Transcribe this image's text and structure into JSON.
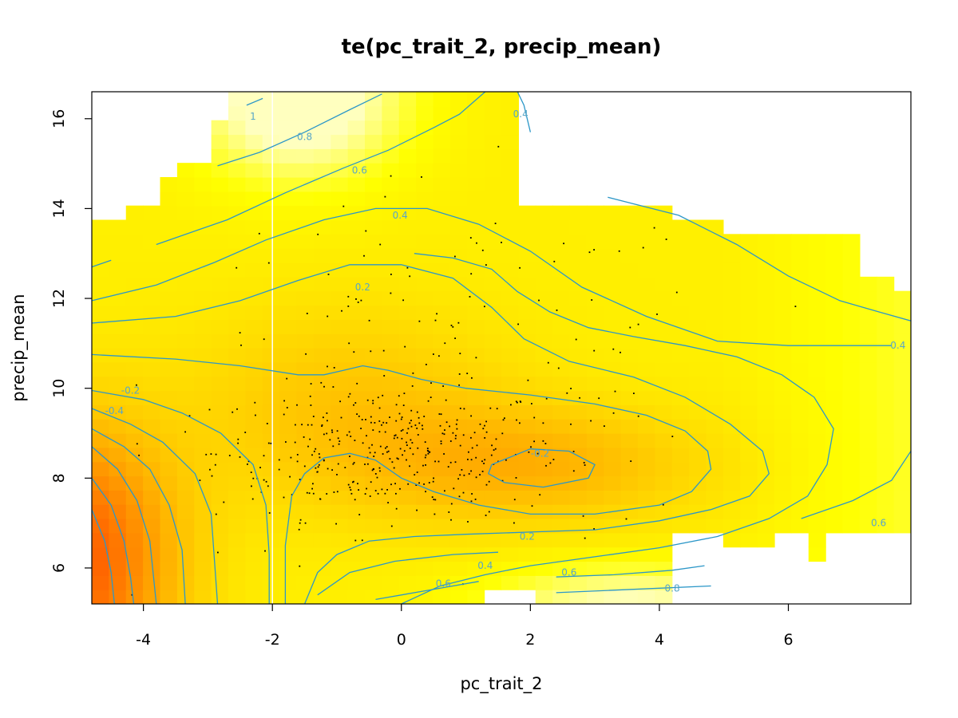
{
  "chart_data": {
    "type": "heatmap",
    "title": "te(pc_trait_2, precip_mean)",
    "xlabel": "pc_trait_2",
    "ylabel": "precip_mean",
    "xlim": [
      -4.8,
      7.9
    ],
    "ylim": [
      5.2,
      16.6
    ],
    "x_ticks": [
      -4,
      -2,
      0,
      2,
      4,
      6
    ],
    "y_ticks": [
      6,
      8,
      10,
      12,
      14,
      16
    ],
    "colors": {
      "low": "#ff0000",
      "mid": "#ff9f00",
      "high": "#ffff00",
      "top": "#ffffbf",
      "contour": "#2c97c8",
      "points": "#000000",
      "vline": "#ffffff"
    },
    "reference_line_x": -2,
    "contour_levels": [
      -0.2,
      0.2,
      0.4,
      0.6,
      0.8,
      1
    ],
    "contour_labels": [
      {
        "text": "0.8",
        "x": -1.5,
        "y": 15.6
      },
      {
        "text": "0.6",
        "x": -0.65,
        "y": 14.85
      },
      {
        "text": "0.4",
        "x": -0.02,
        "y": 13.85
      },
      {
        "text": "0.2",
        "x": -0.6,
        "y": 12.25
      },
      {
        "text": "-0.2",
        "x": -4.2,
        "y": 9.95
      },
      {
        "text": "-0.4",
        "x": -4.45,
        "y": 9.5
      },
      {
        "text": "-0.2",
        "x": 2.15,
        "y": 8.55
      },
      {
        "text": "0.2",
        "x": 1.95,
        "y": 6.7
      },
      {
        "text": "0.4",
        "x": 1.3,
        "y": 6.05
      },
      {
        "text": "0.6",
        "x": 0.65,
        "y": 5.65
      },
      {
        "text": "0.6",
        "x": 2.6,
        "y": 5.9
      },
      {
        "text": "0.8",
        "x": 4.2,
        "y": 5.55
      },
      {
        "text": "0.4",
        "x": 7.7,
        "y": 10.95
      },
      {
        "text": "0.6",
        "x": 7.4,
        "y": 7.0
      },
      {
        "text": "0.4",
        "x": 1.85,
        "y": 16.1
      },
      {
        "text": "1",
        "x": -2.3,
        "y": 16.05
      }
    ],
    "contour_lines": [
      [
        [
          -4.8,
          10.75
        ],
        [
          -3.5,
          10.65
        ],
        [
          -2.5,
          10.5
        ],
        [
          -1.6,
          10.3
        ],
        [
          -1.2,
          10.3
        ],
        [
          -0.9,
          10.4
        ],
        [
          -0.6,
          10.5
        ],
        [
          -0.2,
          10.4
        ],
        [
          0.3,
          10.2
        ],
        [
          1.0,
          10.0
        ],
        [
          2.0,
          9.85
        ],
        [
          3.0,
          9.65
        ],
        [
          3.8,
          9.4
        ],
        [
          4.4,
          9.05
        ],
        [
          4.75,
          8.6
        ],
        [
          4.8,
          8.2
        ],
        [
          4.5,
          7.7
        ],
        [
          4.0,
          7.4
        ],
        [
          3.0,
          7.2
        ],
        [
          2.0,
          7.2
        ],
        [
          1.2,
          7.4
        ],
        [
          0.5,
          7.7
        ],
        [
          0.0,
          8.0
        ],
        [
          -0.4,
          8.4
        ],
        [
          -0.8,
          8.55
        ],
        [
          -1.2,
          8.45
        ],
        [
          -1.5,
          8.1
        ],
        [
          -1.7,
          7.6
        ],
        [
          -1.8,
          6.5
        ],
        [
          -1.8,
          5.2
        ]
      ],
      [
        [
          1.4,
          8.3
        ],
        [
          2.0,
          8.65
        ],
        [
          2.6,
          8.6
        ],
        [
          3.0,
          8.3
        ],
        [
          2.9,
          8.0
        ],
        [
          2.2,
          7.8
        ],
        [
          1.6,
          7.9
        ],
        [
          1.35,
          8.1
        ],
        [
          1.4,
          8.3
        ]
      ],
      [
        [
          -4.8,
          11.45
        ],
        [
          -3.5,
          11.6
        ],
        [
          -2.5,
          11.95
        ],
        [
          -1.6,
          12.4
        ],
        [
          -0.8,
          12.75
        ],
        [
          0.0,
          12.75
        ],
        [
          0.8,
          12.45
        ],
        [
          1.4,
          11.8
        ],
        [
          1.9,
          11.1
        ],
        [
          2.6,
          10.6
        ],
        [
          3.6,
          10.25
        ],
        [
          4.4,
          9.8
        ],
        [
          5.1,
          9.2
        ],
        [
          5.6,
          8.6
        ],
        [
          5.7,
          8.1
        ],
        [
          5.4,
          7.6
        ],
        [
          4.8,
          7.3
        ],
        [
          4.0,
          7.05
        ],
        [
          3.0,
          6.85
        ],
        [
          2.0,
          6.8
        ],
        [
          1.0,
          6.75
        ],
        [
          0.2,
          6.7
        ],
        [
          -0.5,
          6.6
        ],
        [
          -1.0,
          6.3
        ],
        [
          -1.3,
          5.9
        ],
        [
          -1.5,
          5.2
        ]
      ],
      [
        [
          -4.8,
          12.7
        ],
        [
          -4.5,
          12.85
        ]
      ],
      [
        [
          -4.8,
          11.95
        ],
        [
          -3.8,
          12.3
        ],
        [
          -2.9,
          12.8
        ],
        [
          -2.1,
          13.3
        ],
        [
          -1.2,
          13.75
        ],
        [
          -0.4,
          14.0
        ],
        [
          0.4,
          14.0
        ],
        [
          1.2,
          13.65
        ],
        [
          2.0,
          13.05
        ],
        [
          2.8,
          12.25
        ],
        [
          3.8,
          11.6
        ],
        [
          4.9,
          11.05
        ],
        [
          6.0,
          10.95
        ],
        [
          7.0,
          10.95
        ],
        [
          7.6,
          10.95
        ]
      ],
      [
        [
          -3.8,
          13.2
        ],
        [
          -2.7,
          13.75
        ],
        [
          -1.8,
          14.35
        ],
        [
          -0.9,
          14.9
        ],
        [
          -0.2,
          15.3
        ],
        [
          0.5,
          15.8
        ],
        [
          0.9,
          16.1
        ],
        [
          1.3,
          16.6
        ]
      ],
      [
        [
          -2.85,
          14.95
        ],
        [
          -2.2,
          15.25
        ],
        [
          -1.5,
          15.7
        ],
        [
          -0.8,
          16.2
        ],
        [
          -0.3,
          16.55
        ]
      ],
      [
        [
          -2.4,
          16.3
        ],
        [
          -2.15,
          16.45
        ]
      ],
      [
        [
          1.8,
          16.6
        ],
        [
          1.9,
          16.3
        ],
        [
          2.0,
          15.7
        ]
      ],
      [
        [
          3.2,
          14.25
        ],
        [
          4.3,
          13.85
        ],
        [
          5.2,
          13.2
        ],
        [
          6.0,
          12.5
        ],
        [
          6.8,
          11.95
        ],
        [
          7.4,
          11.7
        ],
        [
          7.9,
          11.5
        ]
      ],
      [
        [
          0.0,
          5.2
        ],
        [
          0.6,
          5.6
        ],
        [
          1.3,
          5.85
        ],
        [
          2.0,
          6.05
        ],
        [
          3.0,
          6.25
        ],
        [
          4.0,
          6.45
        ],
        [
          4.9,
          6.7
        ],
        [
          5.7,
          7.1
        ],
        [
          6.3,
          7.6
        ],
        [
          6.6,
          8.3
        ],
        [
          6.7,
          9.1
        ],
        [
          6.4,
          9.8
        ],
        [
          5.9,
          10.3
        ],
        [
          5.2,
          10.7
        ],
        [
          4.4,
          10.95
        ],
        [
          3.6,
          11.15
        ],
        [
          2.9,
          11.35
        ],
        [
          2.3,
          11.7
        ],
        [
          1.8,
          12.15
        ],
        [
          1.4,
          12.65
        ],
        [
          0.8,
          12.9
        ],
        [
          0.2,
          13.0
        ]
      ],
      [
        [
          -1.3,
          5.4
        ],
        [
          -0.8,
          5.9
        ],
        [
          -0.1,
          6.15
        ],
        [
          0.8,
          6.3
        ],
        [
          1.5,
          6.35
        ]
      ],
      [
        [
          -0.4,
          5.3
        ],
        [
          0.4,
          5.5
        ],
        [
          1.2,
          5.7
        ]
      ],
      [
        [
          2.4,
          5.8
        ],
        [
          3.3,
          5.85
        ],
        [
          4.2,
          5.95
        ],
        [
          4.7,
          6.05
        ]
      ],
      [
        [
          2.4,
          5.45
        ],
        [
          3.2,
          5.5
        ],
        [
          4.0,
          5.55
        ],
        [
          4.8,
          5.6
        ]
      ],
      [
        [
          6.2,
          7.1
        ],
        [
          7.0,
          7.5
        ],
        [
          7.6,
          7.95
        ],
        [
          7.9,
          8.6
        ]
      ],
      [
        [
          -4.8,
          9.95
        ],
        [
          -4.0,
          9.75
        ],
        [
          -3.4,
          9.45
        ],
        [
          -2.8,
          9.0
        ],
        [
          -2.3,
          8.3
        ],
        [
          -2.1,
          7.4
        ],
        [
          -2.05,
          6.3
        ],
        [
          -2.05,
          5.2
        ]
      ],
      [
        [
          -4.8,
          9.55
        ],
        [
          -4.2,
          9.2
        ],
        [
          -3.7,
          8.8
        ],
        [
          -3.2,
          8.1
        ],
        [
          -2.95,
          7.2
        ],
        [
          -2.9,
          6.2
        ],
        [
          -2.85,
          5.2
        ]
      ],
      [
        [
          -4.8,
          9.1
        ],
        [
          -4.3,
          8.7
        ],
        [
          -3.9,
          8.2
        ],
        [
          -3.6,
          7.4
        ],
        [
          -3.4,
          6.4
        ],
        [
          -3.35,
          5.2
        ]
      ],
      [
        [
          -4.8,
          8.7
        ],
        [
          -4.4,
          8.2
        ],
        [
          -4.1,
          7.5
        ],
        [
          -3.9,
          6.6
        ],
        [
          -3.8,
          5.2
        ]
      ],
      [
        [
          -4.8,
          8.0
        ],
        [
          -4.5,
          7.4
        ],
        [
          -4.3,
          6.6
        ],
        [
          -4.2,
          5.8
        ],
        [
          -4.15,
          5.2
        ]
      ],
      [
        [
          -4.8,
          7.3
        ],
        [
          -4.6,
          6.6
        ],
        [
          -4.5,
          5.9
        ],
        [
          -4.45,
          5.2
        ]
      ]
    ]
  }
}
